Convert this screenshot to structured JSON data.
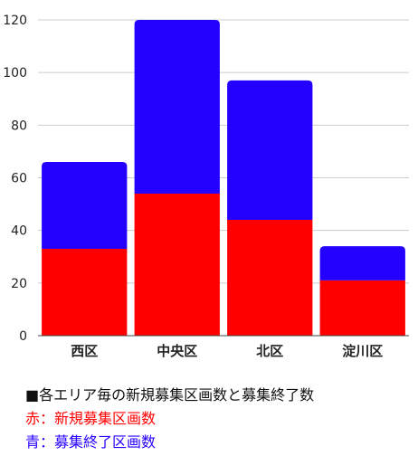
{
  "chart_data": {
    "type": "bar",
    "stacked": true,
    "categories": [
      "西区",
      "中央区",
      "北区",
      "淀川区"
    ],
    "series": [
      {
        "color": "#ff0000",
        "values": [
          33,
          54,
          44,
          21
        ]
      },
      {
        "color": "#2400ff",
        "values": [
          33,
          66,
          53,
          13
        ]
      }
    ],
    "ylim": [
      0,
      120
    ],
    "yticks": [
      0,
      20,
      40,
      60,
      80,
      100,
      120
    ],
    "grid": true,
    "xlabel": "",
    "ylabel": "",
    "title": ""
  },
  "notes": {
    "title": "■各エリア毎の新規募集区画数と募集終了数",
    "red": "赤：新規募集区画数",
    "blue": "青：募集終了区画数"
  }
}
